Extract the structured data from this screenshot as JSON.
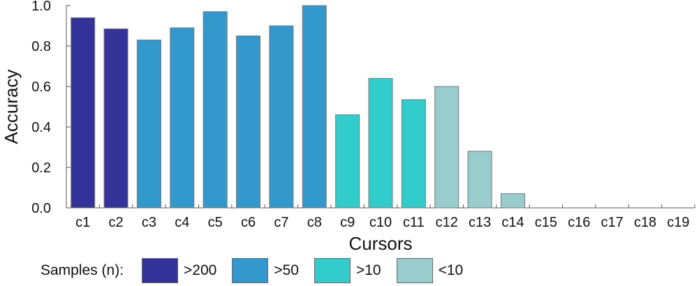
{
  "chart_data": {
    "type": "bar",
    "categories": [
      "c1",
      "c2",
      "c3",
      "c4",
      "c5",
      "c6",
      "c7",
      "c8",
      "c9",
      "c10",
      "c11",
      "c12",
      "c13",
      "c14",
      "c15",
      "c16",
      "c17",
      "c18",
      "c19"
    ],
    "values": [
      0.94,
      0.885,
      0.83,
      0.89,
      0.97,
      0.85,
      0.9,
      1.0,
      0.46,
      0.64,
      0.535,
      0.6,
      0.28,
      0.07,
      0.0,
      0.0,
      0.0,
      0.0,
      0.0
    ],
    "groups": [
      ">200",
      ">200",
      ">50",
      ">50",
      ">50",
      ">50",
      ">50",
      ">50",
      ">10",
      ">10",
      ">10",
      "<10",
      "<10",
      "<10",
      "<10",
      "<10",
      "<10",
      "<10",
      "<10"
    ],
    "xlabel": "Cursors",
    "ylabel": "Accuracy",
    "ylim": [
      0,
      1.0
    ],
    "yticks": [
      "0.0",
      "0.2",
      "0.4",
      "0.6",
      "0.8",
      "1.0"
    ],
    "grid": false,
    "legend": {
      "title": "Samples (n):",
      "placement": "bottom",
      "items": [
        {
          "label": ">200",
          "color": "#33339a"
        },
        {
          "label": ">50",
          "color": "#3399cc"
        },
        {
          "label": ">10",
          "color": "#33cccc"
        },
        {
          "label": "<10",
          "color": "#99cccc"
        }
      ]
    }
  }
}
